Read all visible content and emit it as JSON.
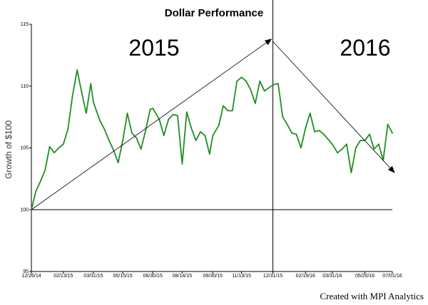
{
  "chart_data": {
    "type": "line",
    "title": "Dollar Performance",
    "ylabel": "Growth of $100",
    "xlabel": "",
    "ylim": [
      95,
      115
    ],
    "yticks": [
      95,
      100,
      105,
      110,
      115
    ],
    "xtick_labels": [
      "12/26/14",
      "02/13/15",
      "03/31/15",
      "05/15/15",
      "06/30/15",
      "08/14/15",
      "09/30/15",
      "11/13/15",
      "12/31/15",
      "02/19/16",
      "03/31/16",
      "05/20/16",
      "07/01/16"
    ],
    "reference_line": 100,
    "divider_date": "12/31/15",
    "grid": false,
    "legend": "none",
    "line_color": "#1f8f1f",
    "annotations": {
      "left_year": "2015",
      "right_year": "2016"
    },
    "arrows": [
      {
        "from": [
          "12/26/14",
          100.0
        ],
        "to": [
          "12/31/15",
          113.8
        ]
      },
      {
        "from": [
          "12/31/15",
          113.6
        ],
        "to": [
          "07/01/16",
          103.0
        ]
      }
    ],
    "series": [
      {
        "x": [
          "12/26/14",
          "01/02/15",
          "01/09/15",
          "01/16/15",
          "01/23/15",
          "01/30/15",
          "02/06/15",
          "02/13/15",
          "02/20/15",
          "02/27/15",
          "03/06/15",
          "03/13/15",
          "03/20/15",
          "03/27/15",
          "03/31/15",
          "04/10/15",
          "04/17/15",
          "04/24/15",
          "05/01/15",
          "05/08/15",
          "05/15/15",
          "05/22/15",
          "05/29/15",
          "06/05/15",
          "06/12/15",
          "06/19/15",
          "06/26/15",
          "06/30/15",
          "07/10/15",
          "07/17/15",
          "07/24/15",
          "07/31/15",
          "08/07/15",
          "08/14/15",
          "08/21/15",
          "08/28/15",
          "09/04/15",
          "09/11/15",
          "09/18/15",
          "09/25/15",
          "09/30/15",
          "10/09/15",
          "10/16/15",
          "10/23/15",
          "10/30/15",
          "11/06/15",
          "11/13/15",
          "11/20/15",
          "11/27/15",
          "12/04/15",
          "12/11/15",
          "12/18/15",
          "12/31/15",
          "01/08/16",
          "01/15/16",
          "01/22/16",
          "01/29/16",
          "02/05/16",
          "02/12/16",
          "02/19/16",
          "02/26/16",
          "03/04/16",
          "03/11/16",
          "03/18/16",
          "03/31/16",
          "04/08/16",
          "04/15/16",
          "04/22/16",
          "04/29/16",
          "05/06/16",
          "05/13/16",
          "05/20/16",
          "05/27/16",
          "06/03/16",
          "06/10/16",
          "06/17/16",
          "06/24/16",
          "07/01/16"
        ],
        "values": [
          100.0,
          101.5,
          102.3,
          103.2,
          105.1,
          104.6,
          105.0,
          105.3,
          106.5,
          109.2,
          111.3,
          109.5,
          107.8,
          110.2,
          108.7,
          107.2,
          106.5,
          105.6,
          104.8,
          103.8,
          105.6,
          107.8,
          106.2,
          105.8,
          104.9,
          106.4,
          108.1,
          108.2,
          107.3,
          106.0,
          107.3,
          107.7,
          107.6,
          103.7,
          107.9,
          106.6,
          105.6,
          106.3,
          106.0,
          104.5,
          106.0,
          106.8,
          108.4,
          108.0,
          108.0,
          110.4,
          110.7,
          110.4,
          109.7,
          108.6,
          110.4,
          109.6,
          110.1,
          110.2,
          107.5,
          106.9,
          106.2,
          106.1,
          105.0,
          106.6,
          107.8,
          106.3,
          106.4,
          106.1,
          105.3,
          104.6,
          104.9,
          105.3,
          103.0,
          105.0,
          105.6,
          105.6,
          106.1,
          104.9,
          105.3,
          104.0,
          106.9,
          106.2
        ]
      }
    ]
  },
  "footer": {
    "credit": "Created with MPI Analytics"
  }
}
